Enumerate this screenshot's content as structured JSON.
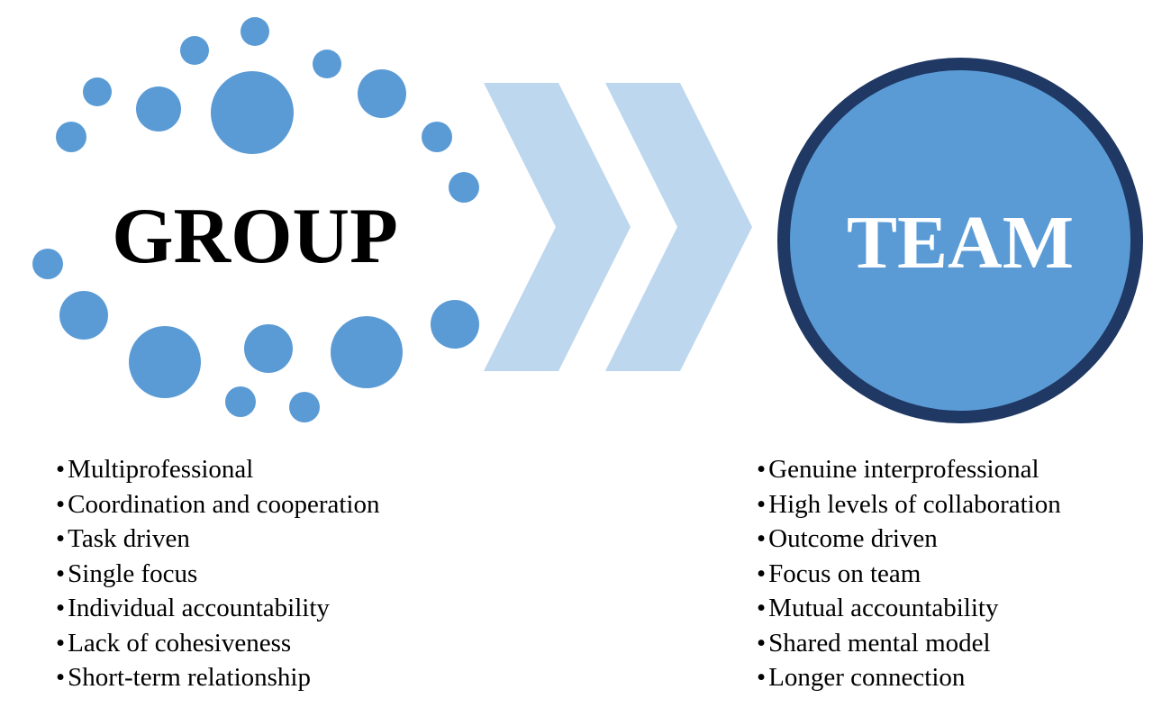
{
  "group": {
    "title": "GROUP",
    "items": [
      "Multiprofessional",
      "Coordination and cooperation",
      "Task driven",
      "Single focus",
      "Individual accountability",
      "Lack of cohesiveness",
      "Short-term relationship"
    ]
  },
  "team": {
    "title": "TEAM",
    "items": [
      "Genuine interprofessional",
      "High levels of collaboration",
      "Outcome driven",
      "Focus on team",
      "Mutual accountability",
      "Shared mental model",
      "Longer connection"
    ]
  },
  "colors": {
    "dots": "#5b9bd5",
    "chevrons": "#bdd7ee",
    "team_circle_fill": "#5b9bd5",
    "team_circle_ring": "#1f3864"
  }
}
